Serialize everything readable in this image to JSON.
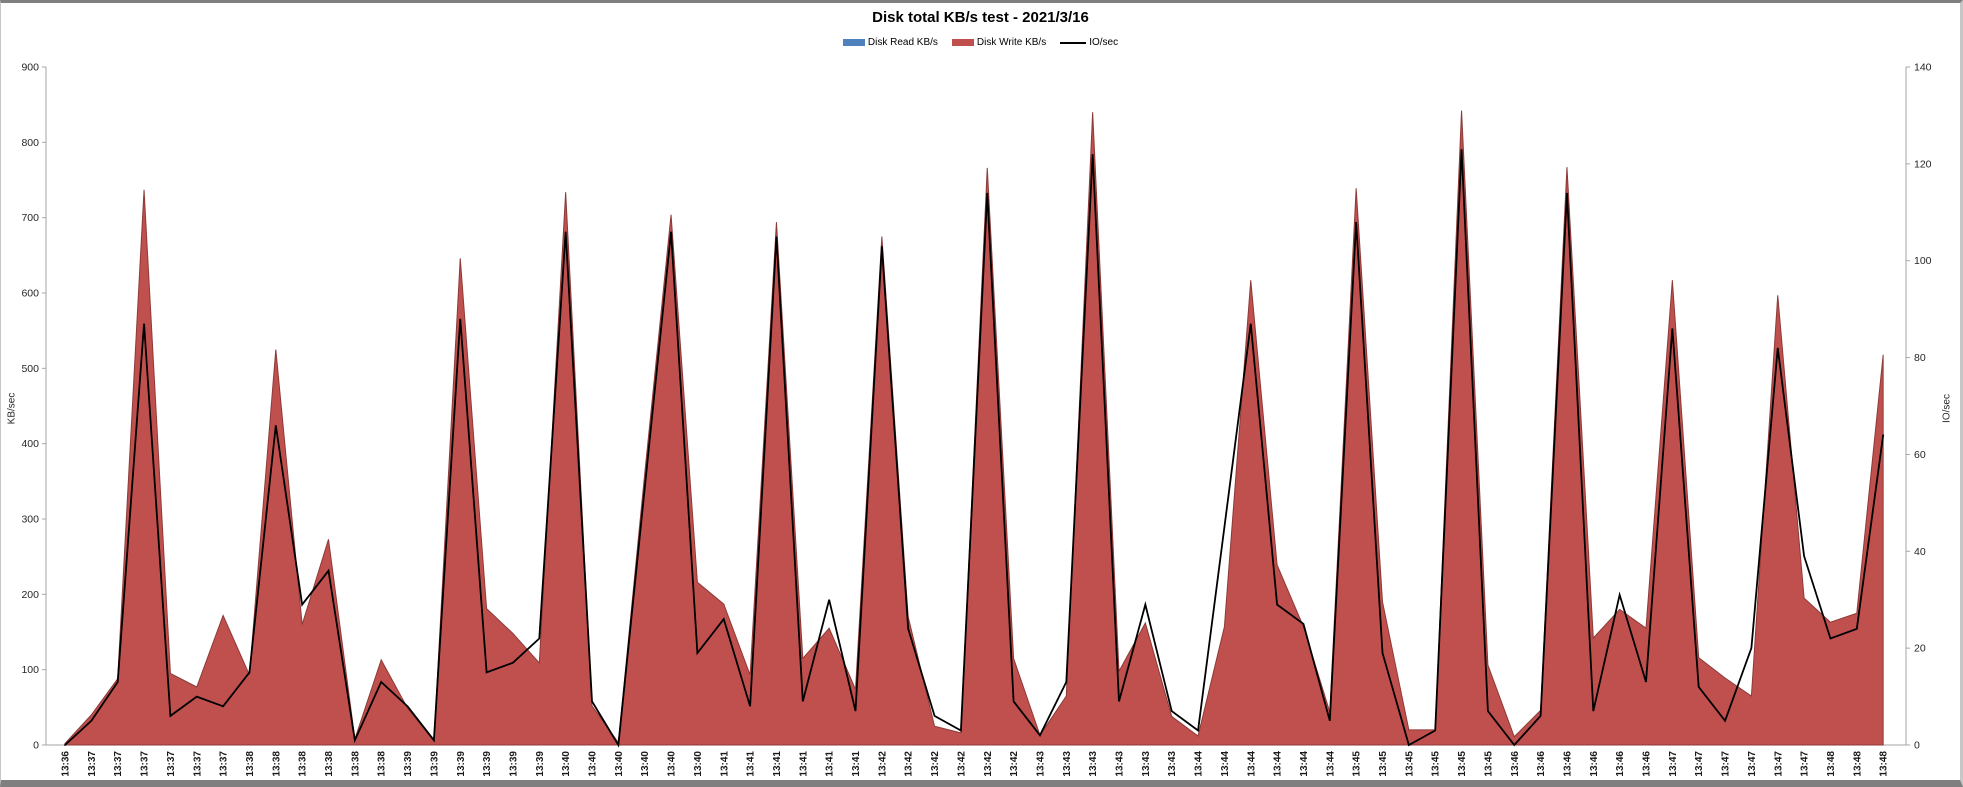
{
  "chart": {
    "title": "Disk total KB/s test - 2021/3/16",
    "legend": [
      {
        "label": "Disk Read KB/s",
        "color": "#4F81BD",
        "type": "area"
      },
      {
        "label": "Disk Write KB/s",
        "color": "#C0504D",
        "type": "area"
      },
      {
        "label": "IO/sec",
        "color": "#000000",
        "type": "line"
      }
    ],
    "left_axis": {
      "title": "KB/sec",
      "min": 0,
      "max": 900,
      "step": 100,
      "ticks": [
        0,
        100,
        200,
        300,
        400,
        500,
        600,
        700,
        800,
        900
      ]
    },
    "right_axis": {
      "title": "IO/sec",
      "min": 0,
      "max": 140,
      "step": 20,
      "ticks": [
        0,
        20,
        40,
        60,
        80,
        100,
        120,
        140
      ]
    },
    "colors": {
      "axis_line": "#A6A6A6",
      "tick_text": "#262626",
      "background": "#FFFFFF"
    }
  },
  "chart_data": {
    "type": "area",
    "title": "Disk total KB/s test - 2021/3/16",
    "xlabel": "",
    "ylabel_left": "KB/sec",
    "ylabel_right": "IO/sec",
    "left_ylim": [
      0,
      900
    ],
    "right_ylim": [
      0,
      140
    ],
    "grid": false,
    "legend_position": "top",
    "x": [
      "13:36",
      "13:37",
      "13:37",
      "13:37",
      "13:37",
      "13:37",
      "13:37",
      "13:38",
      "13:38",
      "13:38",
      "13:38",
      "13:38",
      "13:38",
      "13:39",
      "13:39",
      "13:39",
      "13:39",
      "13:39",
      "13:39",
      "13:40",
      "13:40",
      "13:40",
      "13:40",
      "13:40",
      "13:40",
      "13:41",
      "13:41",
      "13:41",
      "13:41",
      "13:41",
      "13:41",
      "13:42",
      "13:42",
      "13:42",
      "13:42",
      "13:42",
      "13:42",
      "13:43",
      "13:43",
      "13:43",
      "13:43",
      "13:43",
      "13:43",
      "13:44",
      "13:44",
      "13:44",
      "13:44",
      "13:44",
      "13:44",
      "13:45",
      "13:45",
      "13:45",
      "13:45",
      "13:45",
      "13:45",
      "13:46",
      "13:46",
      "13:46",
      "13:46",
      "13:46",
      "13:46",
      "13:47",
      "13:47",
      "13:47",
      "13:47",
      "13:47",
      "13:47",
      "13:48",
      "13:48",
      "13:48"
    ],
    "series": [
      {
        "name": "Disk Read KB/s",
        "axis": "left",
        "type": "area",
        "fill": "#4F81BD",
        "stroke": "#36587F",
        "values": [
          0,
          0,
          0,
          0,
          0,
          0,
          0,
          0,
          0,
          0,
          0,
          0,
          0,
          0,
          0,
          0,
          0,
          0,
          0,
          0,
          0,
          0,
          0,
          0,
          0,
          0,
          0,
          0,
          0,
          0,
          0,
          0,
          0,
          0,
          0,
          0,
          0,
          0,
          0,
          0,
          0,
          0,
          0,
          0,
          0,
          0,
          0,
          0,
          0,
          0,
          0,
          0,
          0,
          0,
          0,
          0,
          0,
          0,
          0,
          0,
          0,
          0,
          0,
          0,
          0,
          0,
          0,
          0,
          0,
          0
        ]
      },
      {
        "name": "Disk Write KB/s",
        "axis": "left",
        "type": "area",
        "fill": "#C0504D",
        "stroke": "#8C3A38",
        "values": [
          2,
          40,
          88,
          737,
          95,
          77,
          172,
          93,
          525,
          160,
          273,
          8,
          113,
          49,
          5,
          646,
          181,
          148,
          109,
          734,
          52,
          3,
          360,
          704,
          216,
          187,
          93,
          694,
          115,
          155,
          74,
          675,
          170,
          25,
          16,
          766,
          115,
          13,
          65,
          840,
          98,
          162,
          38,
          12,
          157,
          617,
          239,
          157,
          44,
          739,
          190,
          20,
          20,
          842,
          106,
          11,
          46,
          767,
          142,
          180,
          155,
          617,
          116,
          89,
          65,
          597,
          195,
          163,
          175,
          518
        ]
      },
      {
        "name": "IO/sec",
        "axis": "right",
        "type": "line",
        "stroke": "#000000",
        "stroke_width": 1.8,
        "values": [
          0,
          5,
          13,
          87,
          6,
          10,
          8,
          15,
          66,
          29,
          36,
          1,
          13,
          8,
          1,
          88,
          15,
          17,
          22,
          106,
          9,
          0,
          53,
          106,
          19,
          26,
          8,
          105,
          9,
          30,
          7,
          103,
          24,
          6,
          3,
          114,
          9,
          2,
          13,
          122,
          9,
          29,
          7,
          3,
          45,
          87,
          29,
          25,
          5,
          108,
          19,
          0,
          3,
          123,
          7,
          0,
          6,
          114,
          7,
          31,
          13,
          86,
          12,
          5,
          20,
          82,
          39,
          22,
          24,
          64
        ]
      }
    ]
  }
}
